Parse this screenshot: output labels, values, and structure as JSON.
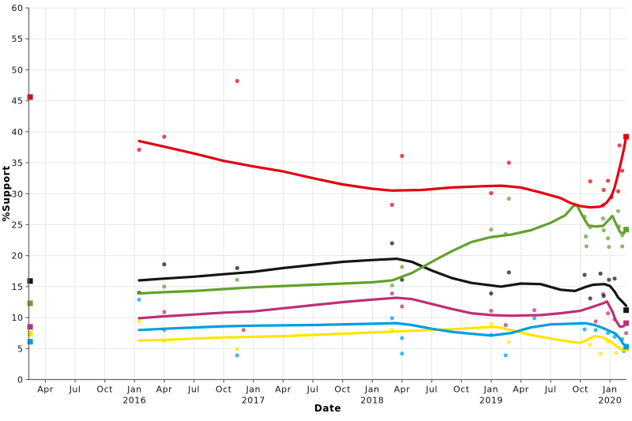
{
  "chart_data": {
    "type": "scatter+trend-line",
    "title": "",
    "xlabel": "Date",
    "ylabel": "%Support",
    "ylim": [
      0,
      60
    ],
    "yticks": [
      0,
      5,
      10,
      15,
      20,
      25,
      30,
      35,
      40,
      45,
      50,
      55,
      60
    ],
    "xlim": [
      "2015-02-11",
      "2020-02-21"
    ],
    "xticks": [
      {
        "date": "2015-04",
        "label": "Apr"
      },
      {
        "date": "2015-07",
        "label": "Jul"
      },
      {
        "date": "2015-10",
        "label": "Oct"
      },
      {
        "date": "2016-01",
        "label": "Jan",
        "year": "2016"
      },
      {
        "date": "2016-04",
        "label": "Apr"
      },
      {
        "date": "2016-07",
        "label": "Jul"
      },
      {
        "date": "2016-10",
        "label": "Oct"
      },
      {
        "date": "2017-01",
        "label": "Jan",
        "year": "2017"
      },
      {
        "date": "2017-04",
        "label": "Apr"
      },
      {
        "date": "2017-07",
        "label": "Jul"
      },
      {
        "date": "2017-10",
        "label": "Oct"
      },
      {
        "date": "2018-01",
        "label": "Jan",
        "year": "2018"
      },
      {
        "date": "2018-04",
        "label": "Apr"
      },
      {
        "date": "2018-07",
        "label": "Jul"
      },
      {
        "date": "2018-10",
        "label": "Oct"
      },
      {
        "date": "2019-01",
        "label": "Jan",
        "year": "2019"
      },
      {
        "date": "2019-04",
        "label": "Apr"
      },
      {
        "date": "2019-07",
        "label": "Jul"
      },
      {
        "date": "2019-10",
        "label": "Oct"
      },
      {
        "date": "2020-01",
        "label": "Jan",
        "year": "2020"
      }
    ],
    "grid": true,
    "legend": "none",
    "colors": {
      "grid": "#e7e7e7",
      "axis": "#666666",
      "text": "#111111",
      "background": "#ffffff"
    },
    "result_marker_dates": [
      "2015-02-15",
      "2020-02-20"
    ],
    "series": [
      {
        "name": "yellow",
        "color": "#ffe500",
        "result_2015": 7.4,
        "result_2020": 5.0,
        "trend": [
          [
            "2016-01-15",
            6.3
          ],
          [
            "2016-04",
            6.4
          ],
          [
            "2016-07",
            6.6
          ],
          [
            "2016-10",
            6.8
          ],
          [
            "2017-01",
            6.9
          ],
          [
            "2017-04",
            7.0
          ],
          [
            "2017-07",
            7.2
          ],
          [
            "2017-10",
            7.4
          ],
          [
            "2018-01",
            7.6
          ],
          [
            "2018-04",
            7.8
          ],
          [
            "2018-07",
            8.0
          ],
          [
            "2018-10",
            8.2
          ],
          [
            "2018-12",
            8.4
          ],
          [
            "2019-01-15",
            8.5
          ],
          [
            "2019-03",
            8.0
          ],
          [
            "2019-05",
            7.2
          ],
          [
            "2019-07",
            6.6
          ],
          [
            "2019-09",
            6.1
          ],
          [
            "2019-10",
            5.9
          ],
          [
            "2019-10-25",
            6.5
          ],
          [
            "2019-11-15",
            7.0
          ],
          [
            "2019-12-10",
            6.8
          ],
          [
            "2020-01",
            6.2
          ],
          [
            "2020-01-18",
            5.5
          ],
          [
            "2020-02-05",
            4.9
          ],
          [
            "2020-02-13",
            4.7
          ],
          [
            "2020-02-20",
            5.0
          ]
        ],
        "polls": [
          [
            "2016-01-15",
            9.4
          ],
          [
            "2016-04",
            6.2
          ],
          [
            "2016-11-12",
            4.9
          ],
          [
            "2018-03",
            8.0
          ],
          [
            "2019-01",
            9.0
          ],
          [
            "2019-02-25",
            6.1
          ],
          [
            "2019-11",
            5.6
          ],
          [
            "2019-12-02",
            4.2
          ],
          [
            "2019-12-25",
            6.1
          ],
          [
            "2020-01-20",
            4.3
          ]
        ]
      },
      {
        "name": "blue",
        "color": "#009ee0",
        "result_2015": 6.1,
        "result_2020": 5.3,
        "trend": [
          [
            "2016-01-15",
            8.0
          ],
          [
            "2016-04",
            8.2
          ],
          [
            "2016-07",
            8.4
          ],
          [
            "2016-10",
            8.6
          ],
          [
            "2017-01",
            8.7
          ],
          [
            "2017-07",
            8.8
          ],
          [
            "2018-01",
            9.0
          ],
          [
            "2018-03-15",
            9.1
          ],
          [
            "2018-05",
            8.8
          ],
          [
            "2018-07",
            8.2
          ],
          [
            "2018-09",
            7.7
          ],
          [
            "2018-11",
            7.4
          ],
          [
            "2019-01",
            7.1
          ],
          [
            "2019-03",
            7.5
          ],
          [
            "2019-05",
            8.4
          ],
          [
            "2019-07",
            8.9
          ],
          [
            "2019-09",
            9.0
          ],
          [
            "2019-10-15",
            9.1
          ],
          [
            "2019-11-15",
            8.8
          ],
          [
            "2019-12-10",
            8.3
          ],
          [
            "2020-01",
            7.8
          ],
          [
            "2020-01-18",
            7.4
          ],
          [
            "2020-02-01",
            6.6
          ],
          [
            "2020-02-10",
            5.8
          ],
          [
            "2020-02-20",
            5.4
          ]
        ],
        "polls": [
          [
            "2016-01-15",
            12.9
          ],
          [
            "2016-04",
            8.0
          ],
          [
            "2016-11-12",
            3.9
          ],
          [
            "2018-03",
            9.9
          ],
          [
            "2018-04",
            6.7
          ],
          [
            "2018-04",
            4.2
          ],
          [
            "2019-01",
            7.2
          ],
          [
            "2019-02-15",
            3.9
          ],
          [
            "2019-05-12",
            9.9
          ],
          [
            "2019-10-14",
            8.1
          ],
          [
            "2019-11-18",
            8.0
          ],
          [
            "2019-12-25",
            7.5
          ],
          [
            "2020-01-15",
            6.9
          ],
          [
            "2020-02-08",
            6.5
          ],
          [
            "2020-02-13",
            4.6
          ]
        ]
      },
      {
        "name": "magenta",
        "color": "#be3075",
        "result_2015": 8.5,
        "result_2020": 9.1,
        "trend": [
          [
            "2016-01-15",
            9.9
          ],
          [
            "2016-04",
            10.2
          ],
          [
            "2016-07",
            10.5
          ],
          [
            "2016-10",
            10.8
          ],
          [
            "2017-01",
            11.0
          ],
          [
            "2017-04",
            11.5
          ],
          [
            "2017-07",
            12.0
          ],
          [
            "2017-10",
            12.5
          ],
          [
            "2018-01",
            12.9
          ],
          [
            "2018-03-15",
            13.2
          ],
          [
            "2018-05",
            13.0
          ],
          [
            "2018-07",
            12.2
          ],
          [
            "2018-09",
            11.4
          ],
          [
            "2018-11",
            10.7
          ],
          [
            "2019-01",
            10.4
          ],
          [
            "2019-03",
            10.3
          ],
          [
            "2019-06",
            10.4
          ],
          [
            "2019-08",
            10.7
          ],
          [
            "2019-10",
            11.1
          ],
          [
            "2019-11",
            11.6
          ],
          [
            "2019-12-10",
            12.3
          ],
          [
            "2019-12-22",
            12.6
          ],
          [
            "2020-01-08",
            11.0
          ],
          [
            "2020-01-18",
            9.6
          ],
          [
            "2020-02-01",
            8.5
          ],
          [
            "2020-02-12",
            8.6
          ],
          [
            "2020-02-20",
            9.1
          ]
        ],
        "polls": [
          [
            "2016-04",
            10.9
          ],
          [
            "2016-12",
            8.0
          ],
          [
            "2018-03",
            13.9
          ],
          [
            "2018-04",
            11.8
          ],
          [
            "2019-01",
            11.1
          ],
          [
            "2019-02-15",
            8.8
          ],
          [
            "2019-05-12",
            11.2
          ],
          [
            "2019-11-18",
            9.4
          ],
          [
            "2019-12-10",
            13.8
          ],
          [
            "2019-12-25",
            10.7
          ],
          [
            "2020-01-15",
            9.7
          ],
          [
            "2020-02-20",
            7.5
          ]
        ]
      },
      {
        "name": "black",
        "color": "#151515",
        "result_2015": 15.9,
        "result_2020": 11.2,
        "trend": [
          [
            "2016-01-15",
            16.0
          ],
          [
            "2016-04",
            16.3
          ],
          [
            "2016-07",
            16.6
          ],
          [
            "2016-10",
            17.0
          ],
          [
            "2017-01",
            17.4
          ],
          [
            "2017-04",
            18.0
          ],
          [
            "2017-07",
            18.5
          ],
          [
            "2017-10",
            19.0
          ],
          [
            "2018-01",
            19.3
          ],
          [
            "2018-03-15",
            19.5
          ],
          [
            "2018-05",
            19.0
          ],
          [
            "2018-07",
            17.6
          ],
          [
            "2018-09",
            16.4
          ],
          [
            "2018-11",
            15.6
          ],
          [
            "2019-01",
            15.2
          ],
          [
            "2019-02",
            15.0
          ],
          [
            "2019-04",
            15.5
          ],
          [
            "2019-06",
            15.4
          ],
          [
            "2019-08",
            14.5
          ],
          [
            "2019-09-15",
            14.3
          ],
          [
            "2019-10-20",
            15.0
          ],
          [
            "2019-11-10",
            15.3
          ],
          [
            "2019-12-15",
            15.4
          ],
          [
            "2020-01",
            15.1
          ],
          [
            "2020-01-15",
            14.2
          ],
          [
            "2020-01-25",
            13.3
          ],
          [
            "2020-02-08",
            12.6
          ],
          [
            "2020-02-20",
            11.9
          ]
        ],
        "polls": [
          [
            "2016-01-15",
            14.0
          ],
          [
            "2016-04",
            18.6
          ],
          [
            "2016-11-12",
            18.0
          ],
          [
            "2018-03",
            22.0
          ],
          [
            "2018-04",
            16.1
          ],
          [
            "2019-01",
            13.9
          ],
          [
            "2019-02-25",
            17.3
          ],
          [
            "2019-10-14",
            16.9
          ],
          [
            "2019-11",
            13.1
          ],
          [
            "2019-12-02",
            17.1
          ],
          [
            "2019-12-12",
            13.5
          ],
          [
            "2019-12-28",
            16.1
          ],
          [
            "2020-01-15",
            16.3
          ]
        ]
      },
      {
        "name": "green",
        "color": "#64a12d",
        "result_2015": 12.3,
        "result_2020": 24.2,
        "trend": [
          [
            "2016-01-15",
            13.9
          ],
          [
            "2016-04",
            14.1
          ],
          [
            "2016-07",
            14.3
          ],
          [
            "2016-10",
            14.6
          ],
          [
            "2017-01",
            14.9
          ],
          [
            "2017-04",
            15.1
          ],
          [
            "2017-07",
            15.3
          ],
          [
            "2017-10",
            15.5
          ],
          [
            "2018-01",
            15.7
          ],
          [
            "2018-03",
            16.0
          ],
          [
            "2018-05",
            17.2
          ],
          [
            "2018-07",
            19.0
          ],
          [
            "2018-09",
            20.7
          ],
          [
            "2018-11",
            22.2
          ],
          [
            "2019-01",
            23.0
          ],
          [
            "2019-03",
            23.4
          ],
          [
            "2019-05",
            24.1
          ],
          [
            "2019-07",
            25.3
          ],
          [
            "2019-08-15",
            26.5
          ],
          [
            "2019-09-10",
            28.0
          ],
          [
            "2019-09-20",
            28.2
          ],
          [
            "2019-10-10",
            26.2
          ],
          [
            "2019-10-25",
            24.9
          ],
          [
            "2019-11-15",
            24.7
          ],
          [
            "2019-12-10",
            24.8
          ],
          [
            "2019-12-28",
            25.8
          ],
          [
            "2020-01-08",
            26.4
          ],
          [
            "2020-01-18",
            25.3
          ],
          [
            "2020-02-01",
            23.8
          ],
          [
            "2020-02-13",
            23.6
          ],
          [
            "2020-02-20",
            24.3
          ]
        ],
        "polls": [
          [
            "2016-04",
            15.0
          ],
          [
            "2016-11-12",
            16.1
          ],
          [
            "2018-03",
            15.2
          ],
          [
            "2018-04",
            18.2
          ],
          [
            "2019-01",
            24.2
          ],
          [
            "2019-02-15",
            23.5
          ],
          [
            "2019-02-25",
            29.2
          ],
          [
            "2019-10-14",
            26.3
          ],
          [
            "2019-10-18",
            23.1
          ],
          [
            "2019-10-20",
            21.5
          ],
          [
            "2019-11",
            24.6
          ],
          [
            "2019-12-10",
            26.0
          ],
          [
            "2019-12-12",
            24.1
          ],
          [
            "2019-12-25",
            22.8
          ],
          [
            "2019-12-28",
            21.4
          ],
          [
            "2020-01-05",
            29.4
          ],
          [
            "2020-01-26",
            27.2
          ],
          [
            "2020-01-28",
            24.7
          ],
          [
            "2020-02-08",
            23.3
          ],
          [
            "2020-02-08",
            21.5
          ]
        ]
      },
      {
        "name": "red",
        "color": "#e3000f",
        "result_2015": 45.6,
        "result_2020": 39.2,
        "trend": [
          [
            "2016-01-15",
            38.5
          ],
          [
            "2016-04",
            37.6
          ],
          [
            "2016-07",
            36.5
          ],
          [
            "2016-10",
            35.3
          ],
          [
            "2017-01",
            34.4
          ],
          [
            "2017-04",
            33.6
          ],
          [
            "2017-07",
            32.5
          ],
          [
            "2017-10",
            31.5
          ],
          [
            "2018-01",
            30.8
          ],
          [
            "2018-03",
            30.5
          ],
          [
            "2018-06",
            30.6
          ],
          [
            "2018-09",
            31.0
          ],
          [
            "2018-12",
            31.2
          ],
          [
            "2019-02",
            31.3
          ],
          [
            "2019-04",
            31.0
          ],
          [
            "2019-06",
            30.2
          ],
          [
            "2019-08",
            29.3
          ],
          [
            "2019-09",
            28.5
          ],
          [
            "2019-10",
            28.0
          ],
          [
            "2019-11",
            27.8
          ],
          [
            "2019-12",
            27.9
          ],
          [
            "2019-12-20",
            28.5
          ],
          [
            "2020-01-05",
            29.6
          ],
          [
            "2020-01-15",
            31.0
          ],
          [
            "2020-01-25",
            33.0
          ],
          [
            "2020-02-05",
            35.3
          ],
          [
            "2020-02-13",
            37.2
          ],
          [
            "2020-02-20",
            39.2
          ]
        ],
        "polls": [
          [
            "2016-01-15",
            37.1
          ],
          [
            "2016-04",
            39.2
          ],
          [
            "2016-11-12",
            48.2
          ],
          [
            "2018-03",
            28.2
          ],
          [
            "2018-04",
            36.1
          ],
          [
            "2019-01",
            30.1
          ],
          [
            "2019-02-25",
            35.0
          ],
          [
            "2019-11",
            32.0
          ],
          [
            "2019-12-10",
            28.1
          ],
          [
            "2019-12-12",
            30.6
          ],
          [
            "2019-12-25",
            32.1
          ],
          [
            "2020-01-05",
            29.5
          ],
          [
            "2020-01-26",
            30.4
          ],
          [
            "2020-01-30",
            37.8
          ],
          [
            "2020-02-08",
            33.7
          ]
        ]
      }
    ]
  }
}
